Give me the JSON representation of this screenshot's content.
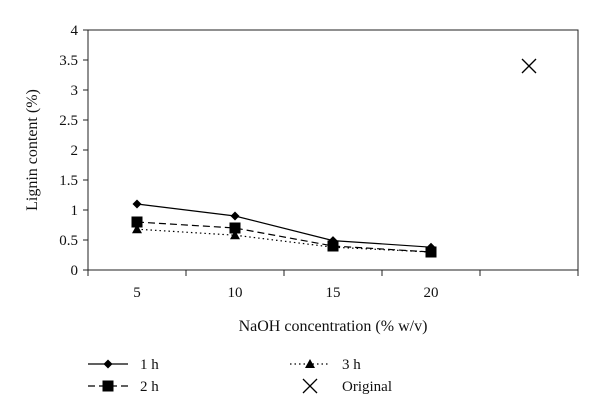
{
  "chart_data": {
    "type": "line",
    "xlabel": "NaOH concentration (% w/v)",
    "ylabel": "Lignin content (%)",
    "categories": [
      "5",
      "10",
      "15",
      "20",
      ""
    ],
    "ylim": [
      0,
      4
    ],
    "yticks": [
      "0",
      "0.5",
      "1",
      "1.5",
      "2",
      "2.5",
      "3",
      "3.5",
      "4"
    ],
    "grid": false,
    "legend_position": "bottom",
    "series": [
      {
        "name": "1 h",
        "values": [
          1.1,
          0.9,
          0.49,
          0.38,
          null
        ],
        "marker": "diamond",
        "line": "solid"
      },
      {
        "name": "2 h",
        "values": [
          0.8,
          0.7,
          0.4,
          0.3,
          null
        ],
        "marker": "square",
        "line": "dashed"
      },
      {
        "name": "3 h",
        "values": [
          0.68,
          0.58,
          0.38,
          0.3,
          null
        ],
        "marker": "triangle",
        "line": "dotted"
      },
      {
        "name": "Original",
        "values": [
          null,
          null,
          null,
          null,
          3.4
        ],
        "marker": "x",
        "line": "none"
      }
    ]
  }
}
